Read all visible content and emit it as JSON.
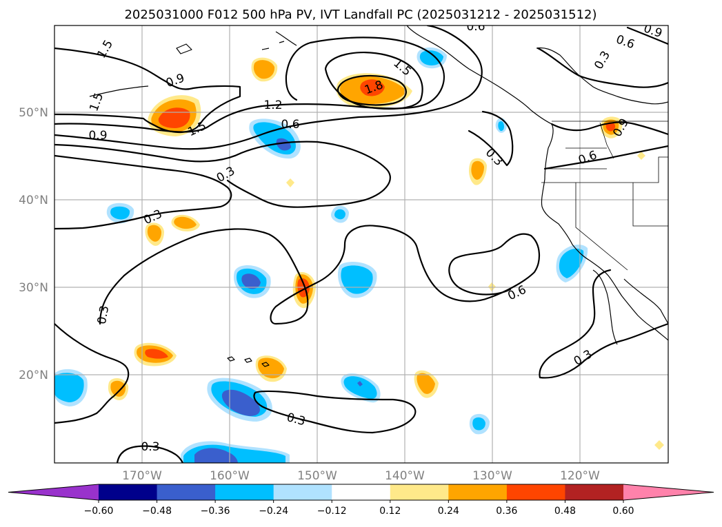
{
  "title": "2025031000 F012 500 hPa PV, IVT Landfall PC (2025031212 - 2025031512)",
  "map": {
    "lat_labels": [
      "50°N",
      "40°N",
      "30°N",
      "20°N"
    ],
    "lon_labels": [
      "170°W",
      "160°W",
      "150°W",
      "140°W",
      "130°W",
      "120°W"
    ],
    "grid": true,
    "projection": "PlateCarree",
    "lon_range": [
      -180,
      -110
    ],
    "lat_range": [
      10,
      60
    ]
  },
  "colorbar": {
    "ticks": [
      "−0.60",
      "−0.48",
      "−0.36",
      "−0.24",
      "−0.12",
      "0.12",
      "0.24",
      "0.36",
      "0.48",
      "0.60"
    ],
    "colors": [
      "#9932cc",
      "#00008b",
      "#3a5fcd",
      "#00bfff",
      "#b0e2ff",
      "#ffffff",
      "#ffe98a",
      "#ffa500",
      "#ff4500",
      "#b22222",
      "#ff82ab"
    ],
    "extend": "both"
  },
  "contour_labels": [
    "1.5",
    "1.5",
    "0.9",
    "0.9",
    "1.2",
    "1.5",
    "1.8",
    "1.5",
    "0.6",
    "0.3",
    "0.3",
    "0.3",
    "0.3",
    "0.3",
    "0.3",
    "0.6",
    "0.3",
    "0.6",
    "0.9",
    "0.6",
    "0.3",
    "0.6",
    "0.9",
    "0.6",
    "0.3"
  ]
}
